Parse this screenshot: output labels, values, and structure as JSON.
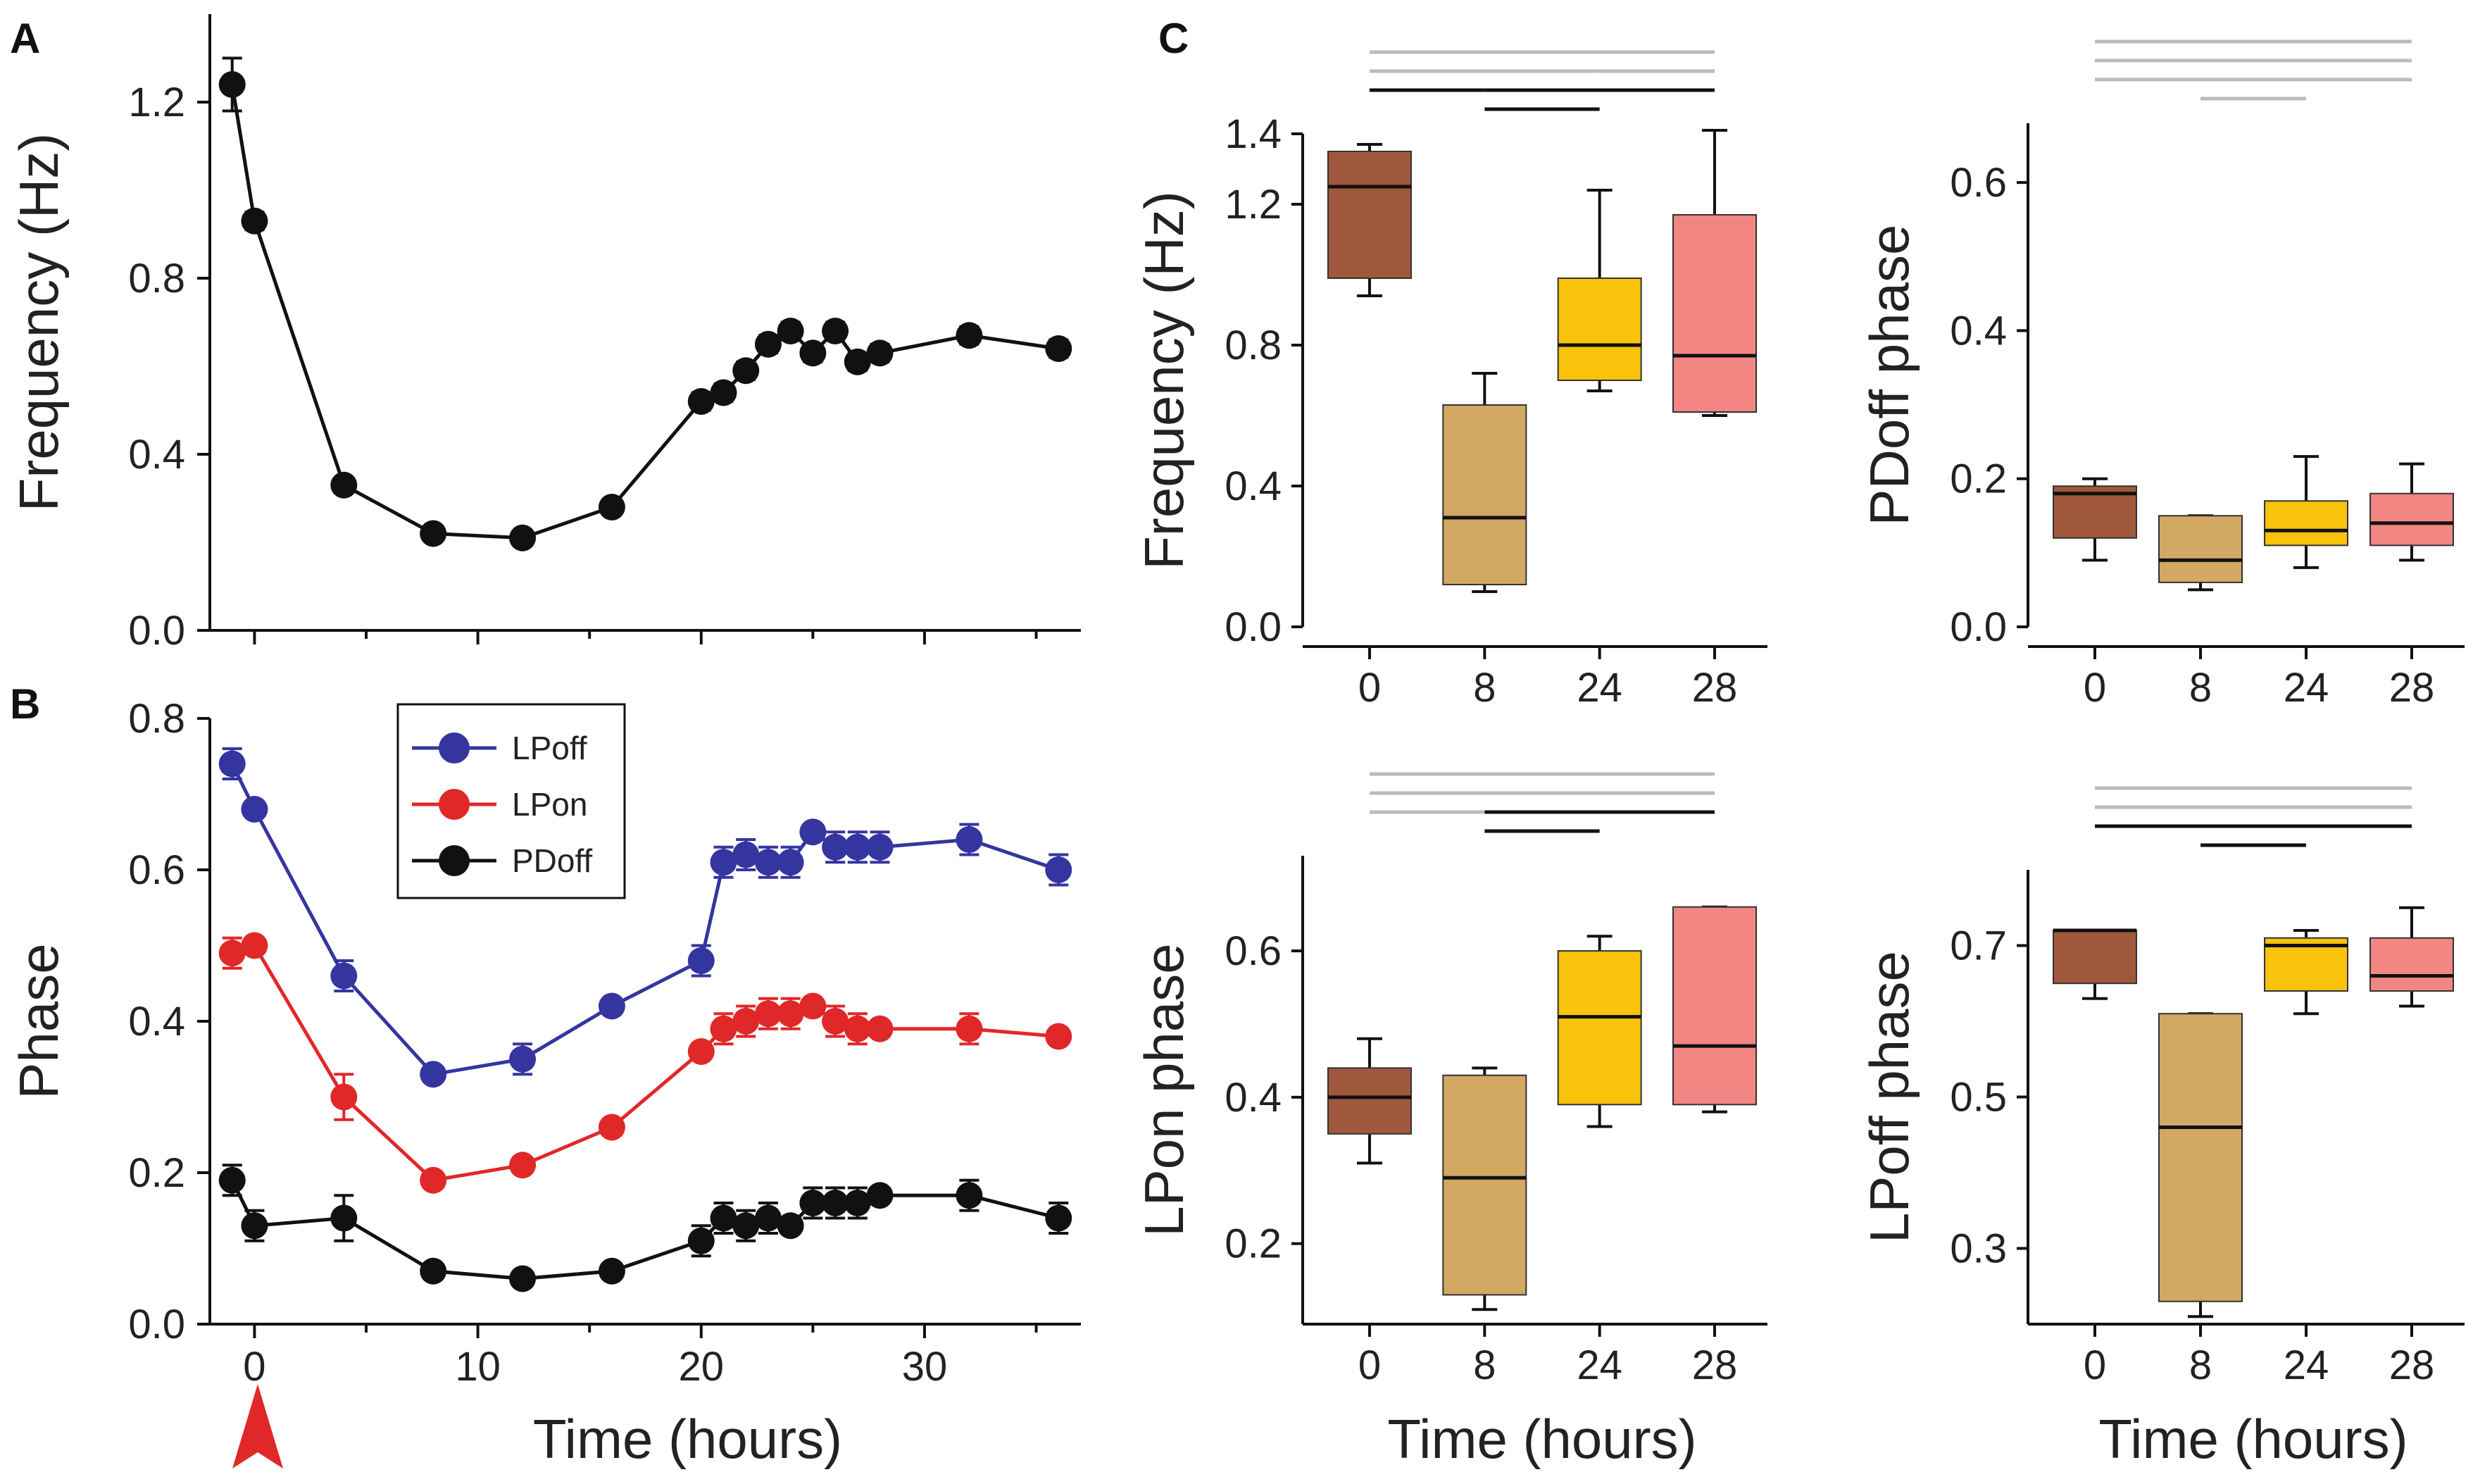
{
  "panel_letters": {
    "a": "A",
    "b": "B",
    "c": "C"
  },
  "chart_data": [
    {
      "id": "A",
      "type": "line",
      "xlabel": "",
      "ylabel": "Frequency (Hz)",
      "xlim": [
        -2,
        37
      ],
      "ylim": [
        0,
        1.4
      ],
      "yticks": [
        "0.0",
        "0.4",
        "0.8",
        "1.2"
      ],
      "series": [
        {
          "name": "Frequency",
          "color": "#111111",
          "x": [
            -1,
            0,
            4,
            8,
            12,
            16,
            20,
            21,
            22,
            23,
            24,
            25,
            26,
            27,
            28,
            32,
            36
          ],
          "y": [
            1.24,
            0.93,
            0.33,
            0.22,
            0.21,
            0.28,
            0.52,
            0.54,
            0.59,
            0.65,
            0.68,
            0.63,
            0.68,
            0.61,
            0.63,
            0.67,
            0.64
          ],
          "err": [
            0.06,
            0.02,
            0.01,
            0.01,
            0.01,
            0.01,
            0.02,
            0.02,
            0.02,
            0.02,
            0.02,
            0.02,
            0.02,
            0.02,
            0.02,
            0.02,
            0.02
          ]
        }
      ]
    },
    {
      "id": "B",
      "type": "line",
      "xlabel": "Time (hours)",
      "ylabel": "Phase",
      "xlim": [
        -2,
        37
      ],
      "ylim": [
        0,
        0.8
      ],
      "xticks": [
        "0",
        "10",
        "20",
        "30"
      ],
      "yticks": [
        "0.0",
        "0.2",
        "0.4",
        "0.6",
        "0.8"
      ],
      "legend": [
        "LPoff",
        "LPon",
        "PDoff"
      ],
      "legend_position": "top-center",
      "series": [
        {
          "name": "LPoff",
          "color": "#3535a0",
          "x": [
            -1,
            0,
            4,
            8,
            12,
            16,
            20,
            21,
            22,
            23,
            24,
            25,
            26,
            27,
            28,
            32,
            36
          ],
          "y": [
            0.74,
            0.68,
            0.46,
            0.33,
            0.35,
            0.42,
            0.48,
            0.61,
            0.62,
            0.61,
            0.61,
            0.65,
            0.63,
            0.63,
            0.63,
            0.64,
            0.6
          ],
          "err": [
            0.02,
            0.01,
            0.02,
            0.01,
            0.02,
            0.01,
            0.02,
            0.02,
            0.02,
            0.02,
            0.02,
            0.01,
            0.02,
            0.02,
            0.02,
            0.02,
            0.02
          ]
        },
        {
          "name": "LPon",
          "color": "#e02828",
          "x": [
            -1,
            0,
            4,
            8,
            12,
            16,
            20,
            21,
            22,
            23,
            24,
            25,
            26,
            27,
            28,
            32,
            36
          ],
          "y": [
            0.49,
            0.5,
            0.3,
            0.19,
            0.21,
            0.26,
            0.36,
            0.39,
            0.4,
            0.41,
            0.41,
            0.42,
            0.4,
            0.39,
            0.39,
            0.39,
            0.38
          ],
          "err": [
            0.02,
            0.01,
            0.03,
            0.01,
            0.01,
            0.01,
            0.01,
            0.02,
            0.02,
            0.02,
            0.02,
            0.01,
            0.02,
            0.02,
            0.01,
            0.02,
            0.01
          ]
        },
        {
          "name": "PDoff",
          "color": "#111111",
          "x": [
            -1,
            0,
            4,
            8,
            12,
            16,
            20,
            21,
            22,
            23,
            24,
            25,
            26,
            27,
            28,
            32,
            36
          ],
          "y": [
            0.19,
            0.13,
            0.14,
            0.07,
            0.06,
            0.07,
            0.11,
            0.14,
            0.13,
            0.14,
            0.13,
            0.16,
            0.16,
            0.16,
            0.17,
            0.17,
            0.14
          ],
          "err": [
            0.02,
            0.02,
            0.03,
            0.01,
            0.01,
            0.01,
            0.02,
            0.02,
            0.02,
            0.02,
            0.01,
            0.02,
            0.02,
            0.02,
            0.01,
            0.02,
            0.02
          ]
        }
      ]
    },
    {
      "id": "C-frequency",
      "type": "box",
      "ylabel": "Frequency (Hz)",
      "xlabel": "",
      "categories": [
        "0",
        "8",
        "24",
        "28"
      ],
      "ylim": [
        0,
        1.4
      ],
      "yticks": [
        "0.0",
        "0.4",
        "0.8",
        "1.2",
        "1.4"
      ],
      "colors": [
        "#a0583c",
        "#d2a862",
        "#f9c20b",
        "#f28682"
      ],
      "boxes": [
        {
          "min": 0.94,
          "q1": 0.99,
          "median": 1.25,
          "q3": 1.35,
          "max": 1.37
        },
        {
          "min": 0.1,
          "q1": 0.12,
          "median": 0.31,
          "q3": 0.63,
          "max": 0.72
        },
        {
          "min": 0.67,
          "q1": 0.7,
          "median": 0.8,
          "q3": 0.99,
          "max": 1.24
        },
        {
          "min": 0.6,
          "q1": 0.61,
          "median": 0.77,
          "q3": 1.17,
          "max": 1.41
        }
      ],
      "sig_black": [
        [
          0,
          1
        ],
        [
          1,
          3
        ],
        [
          1,
          2
        ]
      ],
      "sig_gray": [
        [
          0,
          3
        ],
        [
          0,
          2
        ],
        [
          2,
          3
        ]
      ]
    },
    {
      "id": "C-PDoff",
      "type": "box",
      "ylabel": "PDoff phase",
      "xlabel": "",
      "categories": [
        "0",
        "8",
        "24",
        "28"
      ],
      "ylim": [
        0,
        0.68
      ],
      "yticks": [
        "0.0",
        "0.2",
        "0.4",
        "0.6"
      ],
      "colors": [
        "#a0583c",
        "#d2a862",
        "#f9c20b",
        "#f28682"
      ],
      "boxes": [
        {
          "min": 0.09,
          "q1": 0.12,
          "median": 0.18,
          "q3": 0.19,
          "max": 0.2
        },
        {
          "min": 0.05,
          "q1": 0.06,
          "median": 0.09,
          "q3": 0.15,
          "max": 0.15
        },
        {
          "min": 0.08,
          "q1": 0.11,
          "median": 0.13,
          "q3": 0.17,
          "max": 0.23
        },
        {
          "min": 0.09,
          "q1": 0.11,
          "median": 0.14,
          "q3": 0.18,
          "max": 0.22
        }
      ],
      "sig_black": [],
      "sig_gray": [
        [
          0,
          3
        ],
        [
          0,
          2
        ],
        [
          0,
          1
        ],
        [
          1,
          3
        ],
        [
          1,
          2
        ],
        [
          2,
          3
        ]
      ]
    },
    {
      "id": "C-LPon",
      "type": "box",
      "ylabel": "LPon  phase",
      "xlabel": "Time (hours)",
      "categories": [
        "0",
        "8",
        "24",
        "28"
      ],
      "ylim": [
        0.09,
        0.73
      ],
      "yticks": [
        "0.2",
        "0.4",
        "0.6"
      ],
      "colors": [
        "#a0583c",
        "#d2a862",
        "#f9c20b",
        "#f28682"
      ],
      "boxes": [
        {
          "min": 0.31,
          "q1": 0.35,
          "median": 0.4,
          "q3": 0.44,
          "max": 0.48
        },
        {
          "min": 0.11,
          "q1": 0.13,
          "median": 0.29,
          "q3": 0.43,
          "max": 0.44
        },
        {
          "min": 0.36,
          "q1": 0.39,
          "median": 0.51,
          "q3": 0.6,
          "max": 0.62
        },
        {
          "min": 0.38,
          "q1": 0.39,
          "median": 0.47,
          "q3": 0.66,
          "max": 0.66
        }
      ],
      "sig_black": [
        [
          1,
          3
        ],
        [
          1,
          2
        ]
      ],
      "sig_gray": [
        [
          0,
          3
        ],
        [
          0,
          2
        ],
        [
          0,
          1
        ],
        [
          2,
          3
        ]
      ]
    },
    {
      "id": "C-LPoff",
      "type": "box",
      "ylabel": "LPoff phase",
      "xlabel": "Time (hours)",
      "categories": [
        "0",
        "8",
        "24",
        "28"
      ],
      "ylim": [
        0.2,
        0.8
      ],
      "yticks": [
        "0.3",
        "0.5",
        "0.7"
      ],
      "colors": [
        "#a0583c",
        "#d2a862",
        "#f9c20b",
        "#f28682"
      ],
      "boxes": [
        {
          "min": 0.63,
          "q1": 0.65,
          "median": 0.72,
          "q3": 0.72,
          "max": 0.72
        },
        {
          "min": 0.21,
          "q1": 0.23,
          "median": 0.46,
          "q3": 0.61,
          "max": 0.61
        },
        {
          "min": 0.61,
          "q1": 0.64,
          "median": 0.7,
          "q3": 0.71,
          "max": 0.72
        },
        {
          "min": 0.62,
          "q1": 0.64,
          "median": 0.66,
          "q3": 0.71,
          "max": 0.75
        }
      ],
      "sig_black": [
        [
          0,
          1
        ],
        [
          1,
          3
        ],
        [
          1,
          2
        ]
      ],
      "sig_gray": [
        [
          0,
          3
        ],
        [
          0,
          2
        ],
        [
          2,
          3
        ]
      ]
    }
  ]
}
